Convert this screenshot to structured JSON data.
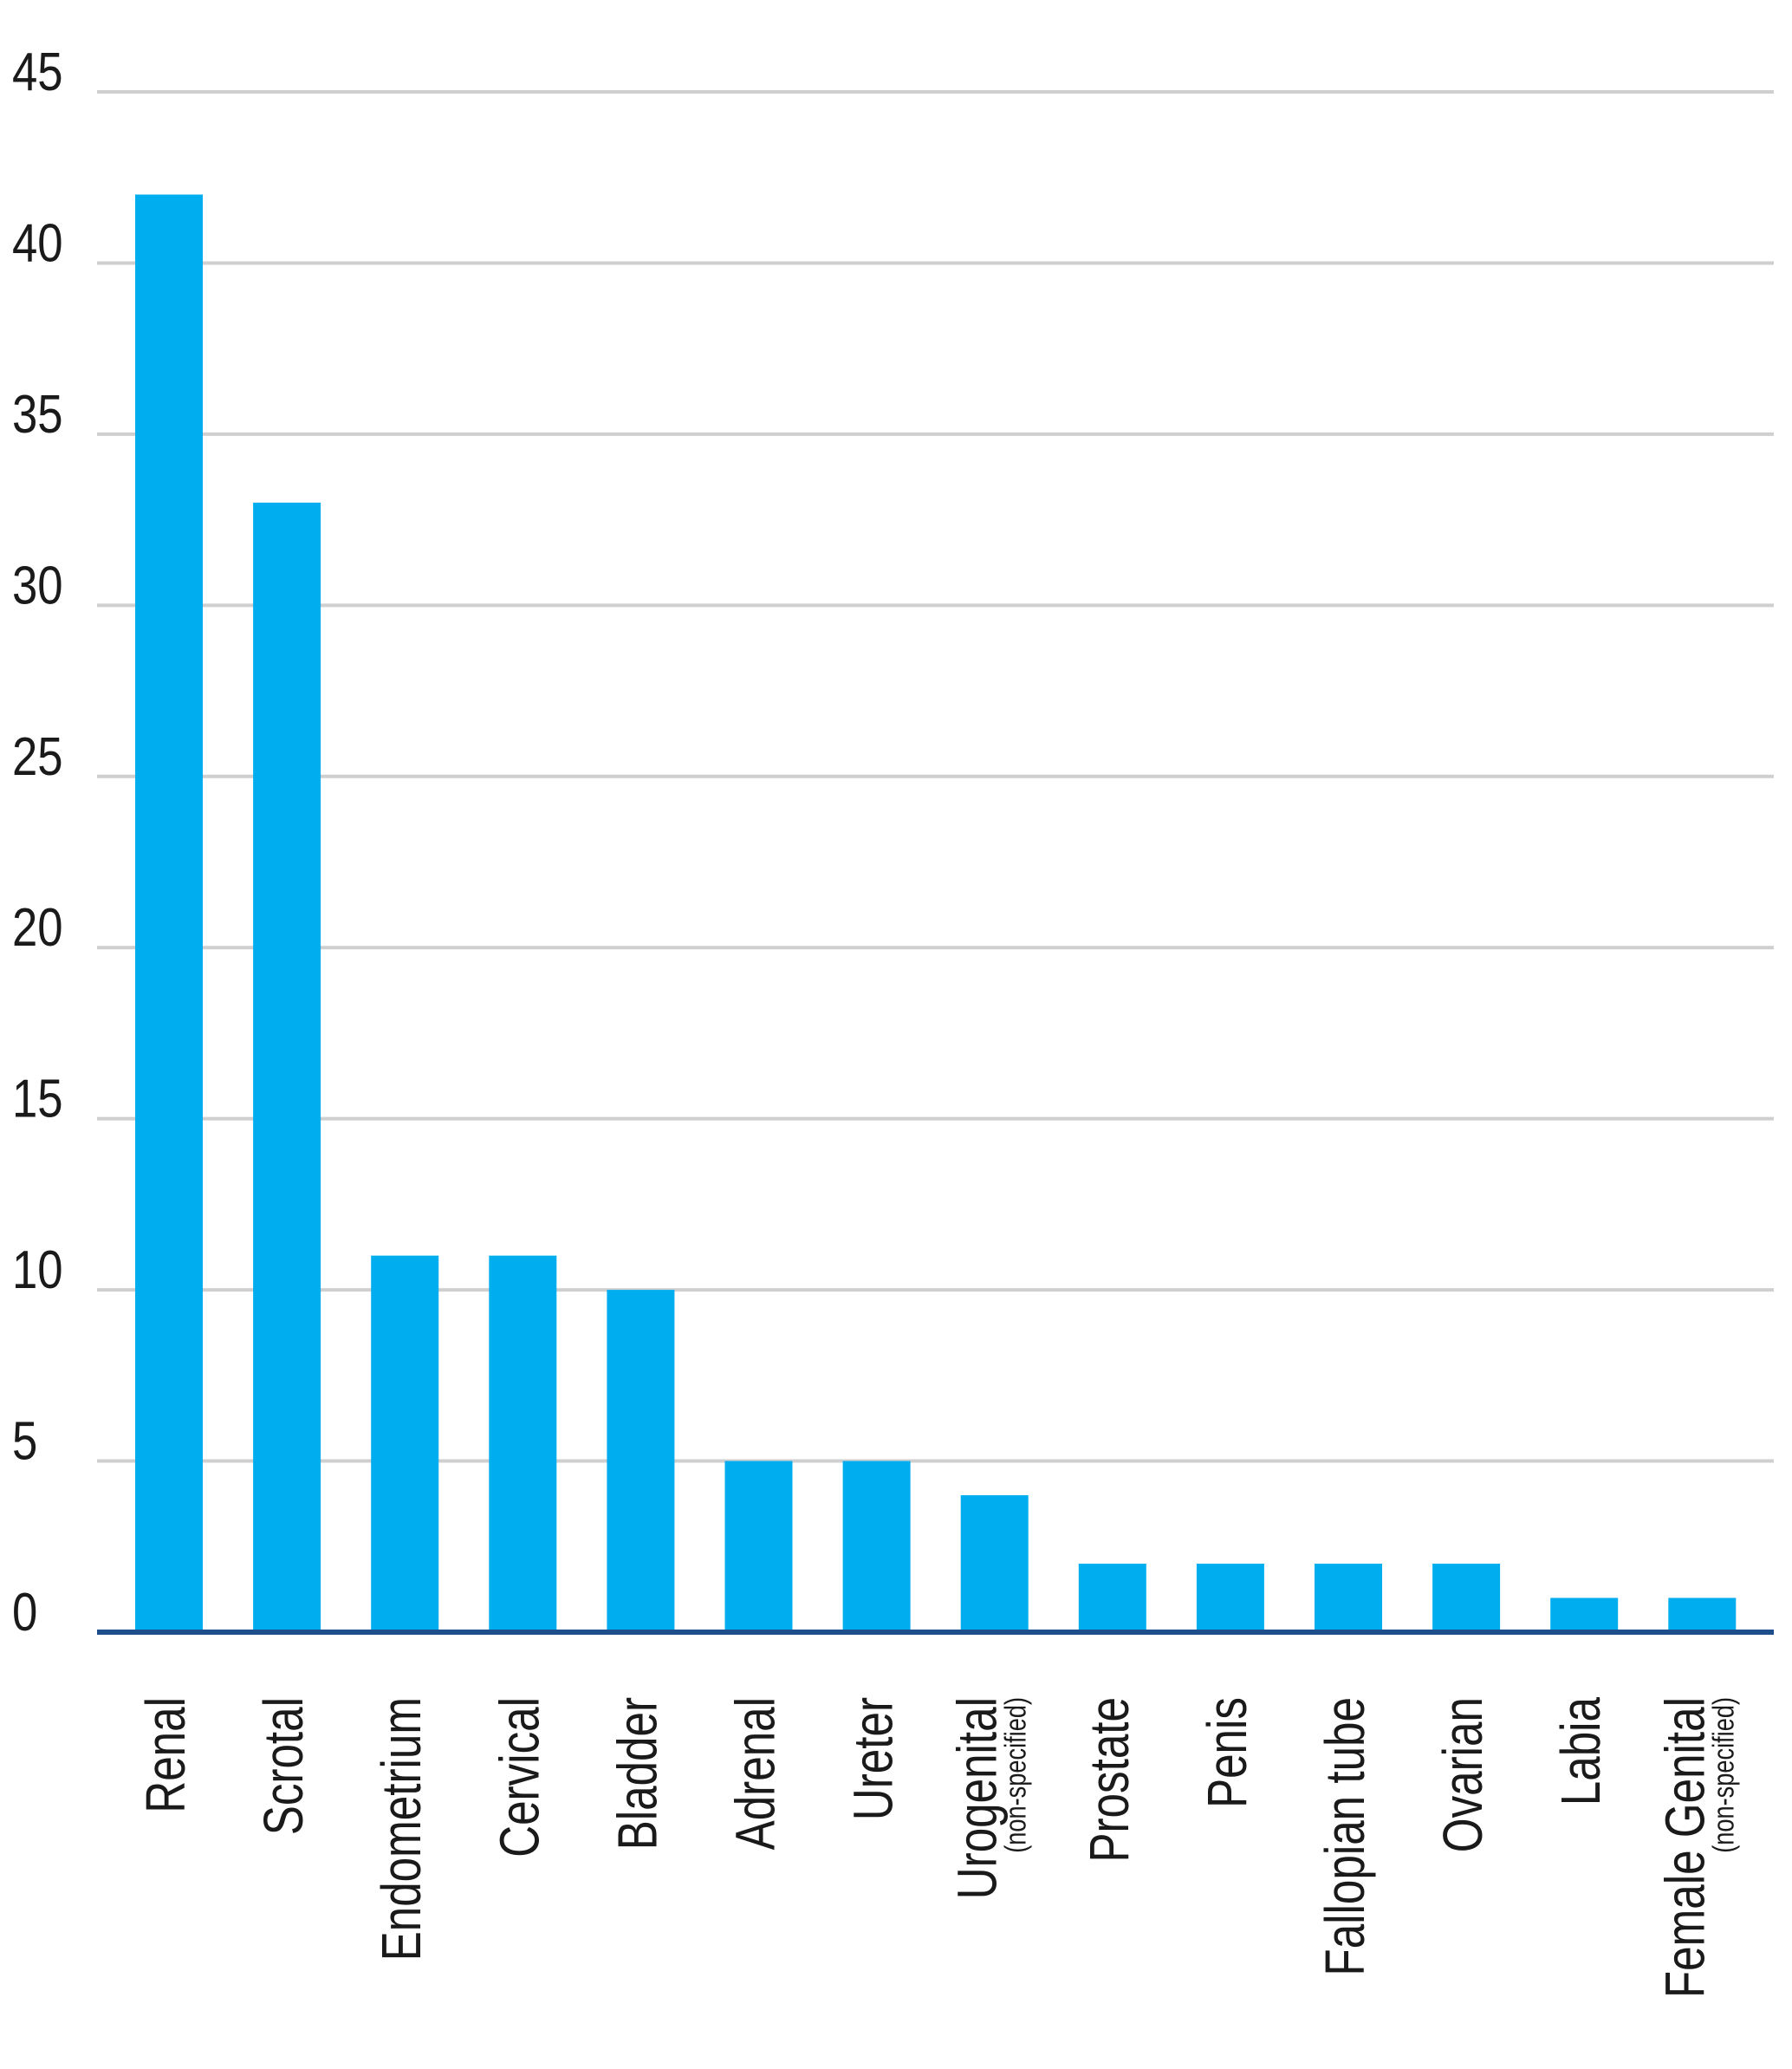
{
  "chart_data": {
    "type": "bar",
    "categories": [
      "Renal",
      "Scrotal",
      "Endometrium",
      "Cervical",
      "Bladder",
      "Adrenal",
      "Ureter",
      {
        "label": "Urogenital",
        "note": "(non-specified)"
      },
      "Prostate",
      "Penis",
      "Fallopian tube",
      "Ovarian",
      "Labia",
      {
        "label": "Female Genital",
        "note": "(non-specified)"
      }
    ],
    "values": [
      42,
      33,
      11,
      11,
      10,
      5,
      5,
      4,
      2,
      2,
      2,
      2,
      1,
      1
    ],
    "color": "#00aeef",
    "ylim": [
      0,
      45
    ],
    "yticks": [
      0,
      5,
      10,
      15,
      20,
      25,
      30,
      35,
      40,
      45
    ],
    "grid": true
  }
}
